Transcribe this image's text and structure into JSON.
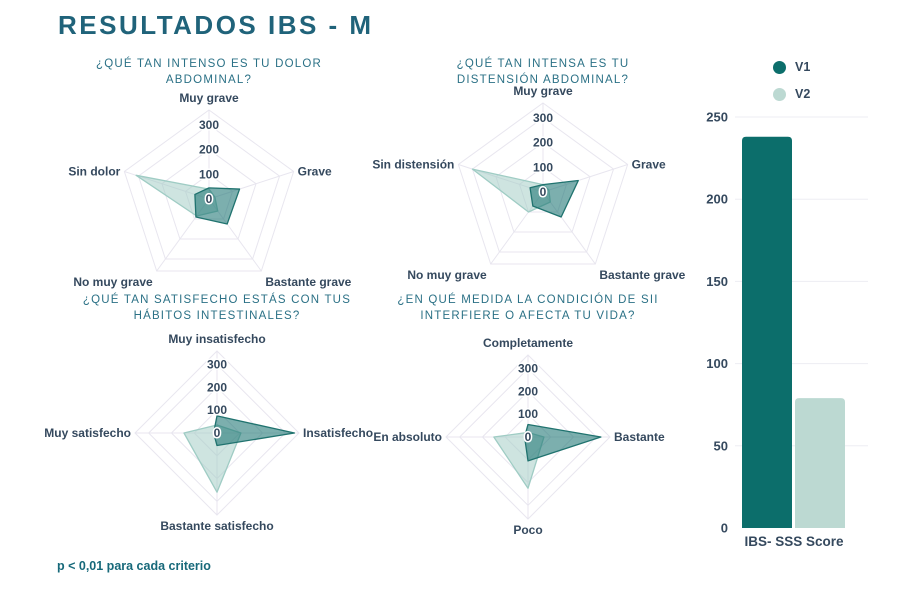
{
  "header": {
    "title": "RESULTADOS IBS - M"
  },
  "footnote": "p < 0,01 para cada criterio",
  "legend": {
    "items": [
      {
        "label": "V1",
        "color": "#0c6e6b"
      },
      {
        "label": "V2",
        "color": "#bcd9d2"
      }
    ]
  },
  "colors": {
    "title_teal": "#20637a",
    "question_teal": "#2b7186",
    "label_navy": "#35495e",
    "grid": "#e8e6ef",
    "bar_grid": "#ededf3",
    "v1": "#0c6e6b",
    "v2": "#bcd9d2",
    "v1_fill": "rgba(17,110,107,0.55)",
    "v1_stroke": "#20736f",
    "v2_fill": "rgba(157,201,193,0.5)",
    "v2_stroke": "#9fccc4"
  },
  "chart_data": [
    {
      "type": "radar",
      "title": "¿QUÉ TAN INTENSO ES TU DOLOR ABDOMINAL?",
      "axes": [
        "Muy grave",
        "Grave",
        "Bastante grave",
        "No muy grave",
        "Sin dolor"
      ],
      "ticks": [
        0,
        100,
        200,
        300
      ],
      "scale_max": 360,
      "grid": true,
      "series": [
        {
          "name": "V1",
          "values": [
            45,
            130,
            125,
            90,
            60
          ]
        },
        {
          "name": "V2",
          "values": [
            40,
            25,
            60,
            85,
            310
          ]
        }
      ]
    },
    {
      "type": "radar",
      "title": "¿QUÉ TAN INTENSA ES TU DISTENSIÓN ABDOMINAL?",
      "axes": [
        "Muy grave",
        "Grave",
        "Bastante grave",
        "No muy grave",
        "Sin distensión"
      ],
      "ticks": [
        0,
        100,
        200,
        300
      ],
      "scale_max": 360,
      "grid": true,
      "series": [
        {
          "name": "V1",
          "values": [
            30,
            150,
            125,
            70,
            55
          ]
        },
        {
          "name": "V2",
          "values": [
            30,
            25,
            50,
            100,
            300
          ]
        }
      ]
    },
    {
      "type": "radar",
      "title": "¿QUÉ TAN SATISFECHO ESTÁS CON TUS HÁBITOS INTESTINALES?",
      "axes": [
        "Muy insatisfecho",
        "Insatisfecho",
        "Bastante satisfecho",
        "Muy satisfecho"
      ],
      "ticks": [
        0,
        100,
        200,
        300
      ],
      "scale_max": 360,
      "grid": true,
      "series": [
        {
          "name": "V1",
          "values": [
            75,
            340,
            55,
            15
          ]
        },
        {
          "name": "V2",
          "values": [
            35,
            105,
            260,
            145
          ]
        }
      ]
    },
    {
      "type": "radar",
      "title": "¿EN QUÉ MEDIDA LA CONDICIÓN DE SII INTERFIERE O AFECTA TU VIDA?",
      "axes": [
        "Completamente",
        "Bastante",
        "Poco",
        "En absoluto"
      ],
      "ticks": [
        0,
        100,
        200,
        300
      ],
      "scale_max": 360,
      "grid": true,
      "series": [
        {
          "name": "V1",
          "values": [
            55,
            320,
            105,
            15
          ]
        },
        {
          "name": "V2",
          "values": [
            20,
            70,
            225,
            150
          ]
        }
      ]
    },
    {
      "type": "bar",
      "title": "",
      "xlabel": "IBS- SSS Score",
      "categories": [
        "IBS- SSS Score"
      ],
      "ylim": [
        0,
        250
      ],
      "yticks": [
        0,
        50,
        100,
        150,
        200,
        250
      ],
      "grid": true,
      "legend_position": "top-right",
      "series": [
        {
          "name": "V1",
          "values": [
            238
          ]
        },
        {
          "name": "V2",
          "values": [
            79
          ]
        }
      ]
    }
  ]
}
